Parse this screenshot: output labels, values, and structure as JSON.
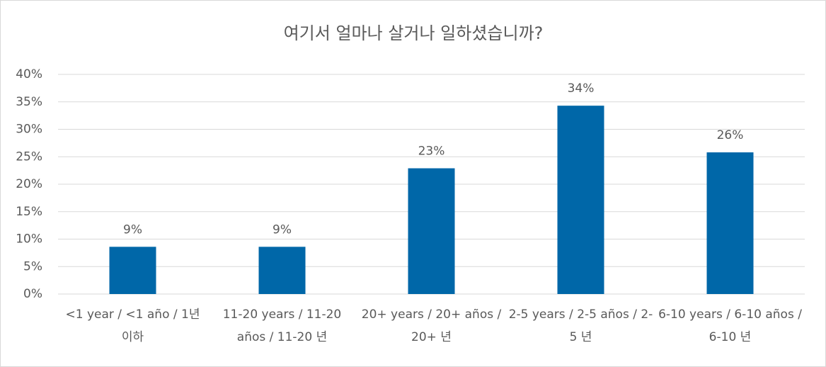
{
  "chart_data": {
    "type": "bar",
    "title": "여기서 얼마나 살거나 일하셨습니까?",
    "categories": [
      "<1 year / <1 año / 1년 이하",
      "11-20 years / 11-20 años / 11-20 년",
      "20+ years / 20+ años / 20+ 년",
      "2-5 years / 2-5 años / 2-5 년",
      "6-10 years / 6-10 años / 6-10 년"
    ],
    "values": [
      8.6,
      8.6,
      22.9,
      34.3,
      25.8
    ],
    "value_labels": [
      "9%",
      "9%",
      "23%",
      "34%",
      "26%"
    ],
    "color": "#0067a8",
    "ylim": [
      0,
      40
    ],
    "yticks": [
      {
        "value": 0,
        "label": "0%"
      },
      {
        "value": 5,
        "label": "5%"
      },
      {
        "value": 10,
        "label": "10%"
      },
      {
        "value": 15,
        "label": "15%"
      },
      {
        "value": 20,
        "label": "20%"
      },
      {
        "value": 25,
        "label": "25%"
      },
      {
        "value": 30,
        "label": "30%"
      },
      {
        "value": 35,
        "label": "35%"
      },
      {
        "value": 40,
        "label": "40%"
      }
    ],
    "grid": true
  }
}
